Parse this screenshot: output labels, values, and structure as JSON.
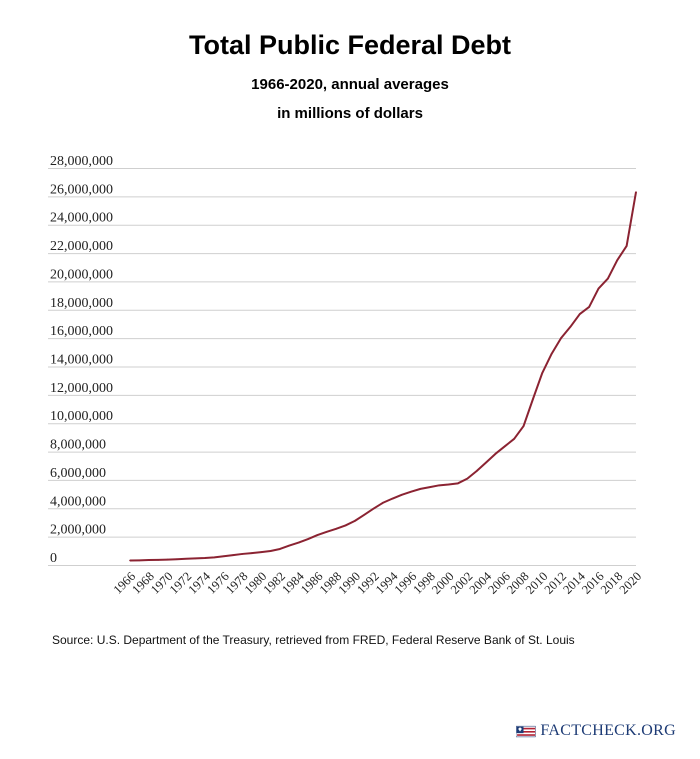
{
  "header": {
    "title": "Total Public Federal Debt",
    "subtitle_line1": "1966-2020, annual averages",
    "subtitle_line2": "in millions of dollars"
  },
  "footer": {
    "source": "Source: U.S. Department of the Treasury, retrieved from FRED, Federal Reserve Bank of St. Louis",
    "logo_text": "FACTCHECK.ORG",
    "logo_icon": "flag-icon"
  },
  "colors": {
    "line": "#8b2332",
    "grid": "#cfcfcf",
    "logo_blue": "#1d3b75",
    "logo_red": "#b22234"
  },
  "chart_data": {
    "type": "line",
    "title": "Total Public Federal Debt",
    "subtitle": "1966-2020, annual averages in millions of dollars",
    "xlabel": "",
    "ylabel": "",
    "x": [
      1966,
      1967,
      1968,
      1969,
      1970,
      1971,
      1972,
      1973,
      1974,
      1975,
      1976,
      1977,
      1978,
      1979,
      1980,
      1981,
      1982,
      1983,
      1984,
      1985,
      1986,
      1987,
      1988,
      1989,
      1990,
      1991,
      1992,
      1993,
      1994,
      1995,
      1996,
      1997,
      1998,
      1999,
      2000,
      2001,
      2002,
      2003,
      2004,
      2005,
      2006,
      2007,
      2008,
      2009,
      2010,
      2011,
      2012,
      2013,
      2014,
      2015,
      2016,
      2017,
      2018,
      2019,
      2020
    ],
    "series": [
      {
        "values": [
          320000,
          330000,
          350000,
          360000,
          380000,
          410000,
          440000,
          470000,
          490000,
          540000,
          620000,
          700000,
          780000,
          840000,
          910000,
          990000,
          1130000,
          1370000,
          1580000,
          1830000,
          2110000,
          2340000,
          2550000,
          2790000,
          3110000,
          3540000,
          3980000,
          4390000,
          4680000,
          4950000,
          5170000,
          5370000,
          5490000,
          5620000,
          5680000,
          5760000,
          6090000,
          6630000,
          7230000,
          7840000,
          8370000,
          8900000,
          9800000,
          11700000,
          13550000,
          14900000,
          16000000,
          16800000,
          17700000,
          18200000,
          19500000,
          20200000,
          21500000,
          22500000,
          26300000
        ]
      }
    ],
    "x_tick_labels": [
      "1966",
      "1968",
      "1970",
      "1972",
      "1974",
      "1976",
      "1978",
      "1980",
      "1982",
      "1984",
      "1986",
      "1988",
      "1990",
      "1992",
      "1994",
      "1996",
      "1998",
      "2000",
      "2002",
      "2004",
      "2006",
      "2008",
      "2010",
      "2012",
      "2014",
      "2016",
      "2018",
      "2020"
    ],
    "y_tick_labels": [
      "0",
      "2,000,000",
      "4,000,000",
      "6,000,000",
      "8,000,000",
      "10,000,000",
      "12,000,000",
      "14,000,000",
      "16,000,000",
      "18,000,000",
      "20,000,000",
      "22,000,000",
      "24,000,000",
      "26,000,000",
      "28,000,000"
    ],
    "xlim": [
      1966,
      2020
    ],
    "ylim": [
      0,
      28000000
    ],
    "y_tick_step": 2000000,
    "grid": "horizontal",
    "legend": "none"
  }
}
